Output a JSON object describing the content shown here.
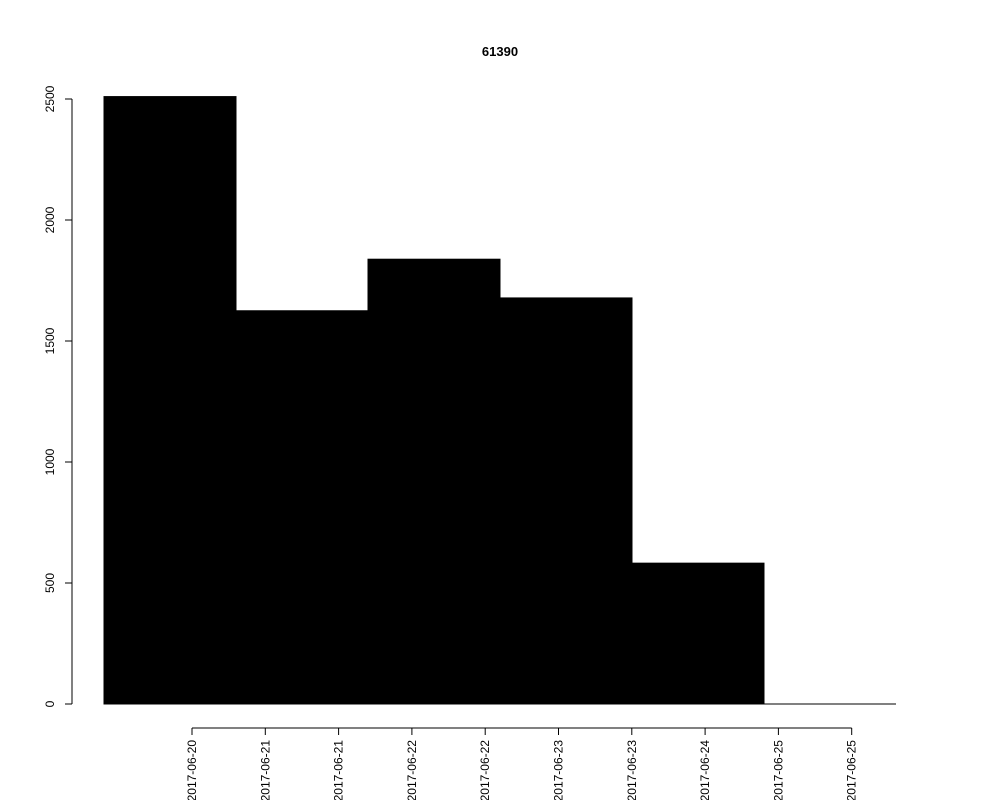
{
  "chart_data": {
    "type": "bar",
    "title": "61390",
    "xlabel": "",
    "ylabel": "",
    "categories": [
      "2017-06-20",
      "2017-06-21",
      "2017-06-22",
      "2017-06-23",
      "2017-06-24",
      "2017-06-25"
    ],
    "values": [
      2510,
      1625,
      1838,
      1678,
      582,
      0
    ],
    "ylim": [
      0,
      2500
    ],
    "yticks": [
      0,
      500,
      1000,
      1500,
      2000,
      2500
    ],
    "xtick_labels": [
      "2017-06-20",
      "2017-06-21",
      "2017-06-21",
      "2017-06-22",
      "2017-06-22",
      "2017-06-23",
      "2017-06-23",
      "2017-06-24",
      "2017-06-25",
      "2017-06-25"
    ],
    "bar_color": "#000000",
    "grid": false,
    "legend": "none"
  }
}
